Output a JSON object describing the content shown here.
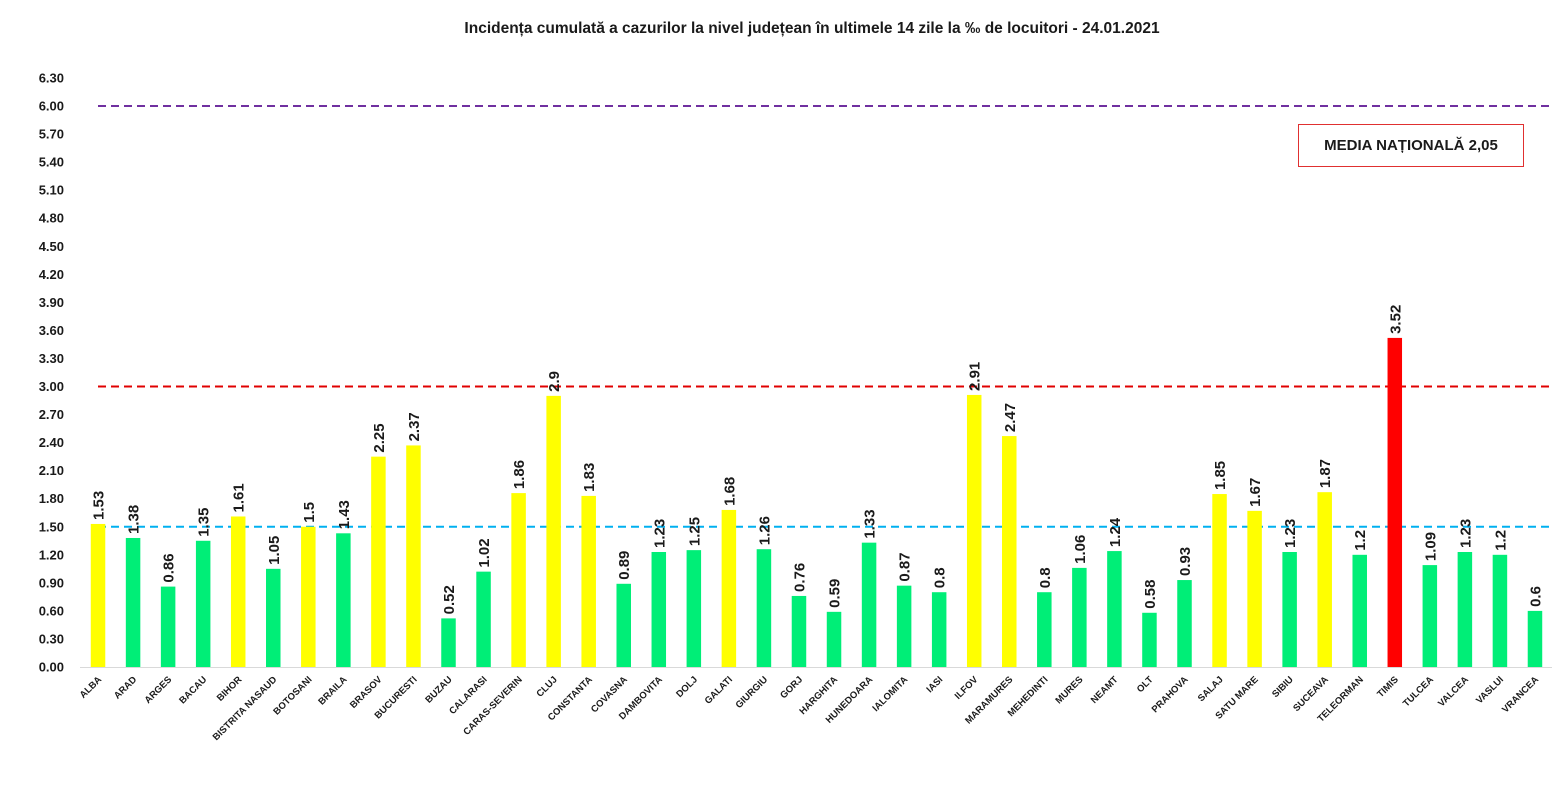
{
  "chart_data": {
    "type": "bar",
    "title": "Incidența cumulată a cazurilor la nivel județean în ultimele 14 zile la ‰ de locuitori - 24.01.2021",
    "xlabel": "",
    "ylabel": "",
    "ylim": [
      0,
      6.3
    ],
    "yticks": [
      "0.00",
      "0.30",
      "0.60",
      "0.90",
      "1.20",
      "1.50",
      "1.80",
      "2.10",
      "2.40",
      "2.70",
      "3.00",
      "3.30",
      "3.60",
      "3.90",
      "4.20",
      "4.50",
      "4.80",
      "5.10",
      "5.40",
      "5.70",
      "6.00",
      "6.30"
    ],
    "grid": false,
    "categories": [
      "ALBA",
      "ARAD",
      "ARGES",
      "BACAU",
      "BIHOR",
      "BISTRITA NASAUD",
      "BOTOSANI",
      "BRAILA",
      "BRASOV",
      "BUCURESTI",
      "BUZAU",
      "CALARASI",
      "CARAS-SEVERIN",
      "CLUJ",
      "CONSTANTA",
      "COVASNA",
      "DAMBOVITA",
      "DOLJ",
      "GALATI",
      "GIURGIU",
      "GORJ",
      "HARGHITA",
      "HUNEDOARA",
      "IALOMITA",
      "IASI",
      "ILFOV",
      "MARAMURES",
      "MEHEDINTI",
      "MURES",
      "NEAMT",
      "OLT",
      "PRAHOVA",
      "SALAJ",
      "SATU MARE",
      "SIBIU",
      "SUCEAVA",
      "TELEORMAN",
      "TIMIS",
      "TULCEA",
      "VALCEA",
      "VASLUI",
      "VRANCEA"
    ],
    "values": [
      1.53,
      1.38,
      0.86,
      1.35,
      1.61,
      1.05,
      1.5,
      1.43,
      2.25,
      2.37,
      0.52,
      1.02,
      1.86,
      2.9,
      1.83,
      0.89,
      1.23,
      1.25,
      1.68,
      1.26,
      0.76,
      0.59,
      1.33,
      0.87,
      0.8,
      2.91,
      2.47,
      0.8,
      1.06,
      1.24,
      0.58,
      0.93,
      1.85,
      1.67,
      1.23,
      1.87,
      1.2,
      3.52,
      1.09,
      1.23,
      1.2,
      0.6
    ],
    "value_labels": [
      "1.53",
      "1.38",
      "0.86",
      "1.35",
      "1.61",
      "1.05",
      "1.5",
      "1.43",
      "2.25",
      "2.37",
      "0.52",
      "1.02",
      "1.86",
      "2.9",
      "1.83",
      "0.89",
      "1.23",
      "1.25",
      "1.68",
      "1.26",
      "0.76",
      "0.59",
      "1.33",
      "0.87",
      "0.8",
      "2.91",
      "2.47",
      "0.8",
      "1.06",
      "1.24",
      "0.58",
      "0.93",
      "1.85",
      "1.67",
      "1.23",
      "1.87",
      "1.2",
      "3.52",
      "1.09",
      "1.23",
      "1.2",
      "0.6"
    ],
    "bar_colors": [
      "#ffff00",
      "#00ee77",
      "#00ee77",
      "#00ee77",
      "#ffff00",
      "#00ee77",
      "#ffff00",
      "#00ee77",
      "#ffff00",
      "#ffff00",
      "#00ee77",
      "#00ee77",
      "#ffff00",
      "#ffff00",
      "#ffff00",
      "#00ee77",
      "#00ee77",
      "#00ee77",
      "#ffff00",
      "#00ee77",
      "#00ee77",
      "#00ee77",
      "#00ee77",
      "#00ee77",
      "#00ee77",
      "#ffff00",
      "#ffff00",
      "#00ee77",
      "#00ee77",
      "#00ee77",
      "#00ee77",
      "#00ee77",
      "#ffff00",
      "#ffff00",
      "#00ee77",
      "#ffff00",
      "#00ee77",
      "#ff0000",
      "#00ee77",
      "#00ee77",
      "#00ee77",
      "#00ee77"
    ],
    "reference_lines": [
      {
        "value": 6.0,
        "color": "#7030a0",
        "style": "dashed"
      },
      {
        "value": 3.0,
        "color": "#e00000",
        "style": "dashed"
      },
      {
        "value": 1.5,
        "color": "#00b0f0",
        "style": "dashed"
      }
    ],
    "annotation": "MEDIA NAȚIONALĂ  2,05",
    "annotation_border_color": "#e03030"
  }
}
